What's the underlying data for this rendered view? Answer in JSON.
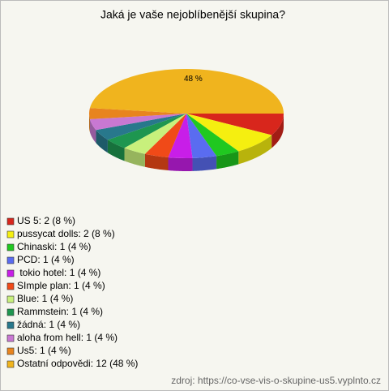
{
  "chart_data": {
    "type": "pie",
    "title": "Jaká je vaše nejoblíbenější skupina?",
    "categories": [
      "US 5: 2 (8 %)",
      "pussycat dolls: 2 (8 %)",
      "Chinaski: 1 (4 %)",
      "PCD: 1 (4 %)",
      " tokio hotel: 1 (4 %)",
      "SImple plan: 1 (4 %)",
      "Blue: 1 (4 %)",
      "Rammstein: 1 (4 %)",
      "žádná: 1 (4 %)",
      "aloha from hell: 1 (4 %)",
      "Us5: 1 (4 %)",
      "Ostatní odpovědi: 12 (48 %)"
    ],
    "values": [
      8,
      8,
      4,
      4,
      4,
      4,
      4,
      4,
      4,
      4,
      4,
      48
    ],
    "value_labels": [
      null,
      null,
      null,
      null,
      null,
      null,
      null,
      null,
      null,
      null,
      null,
      "48 %"
    ],
    "colors": [
      "#d8261c",
      "#f5ef10",
      "#20c820",
      "#5a6cf0",
      "#c81ee8",
      "#f04a18",
      "#c8f07c",
      "#1e9650",
      "#28788c",
      "#c878d2",
      "#e8841e",
      "#f0b41e"
    ],
    "source": "zdroj: https://co-vse-vis-o-skupine-us5.vyplnto.cz"
  }
}
